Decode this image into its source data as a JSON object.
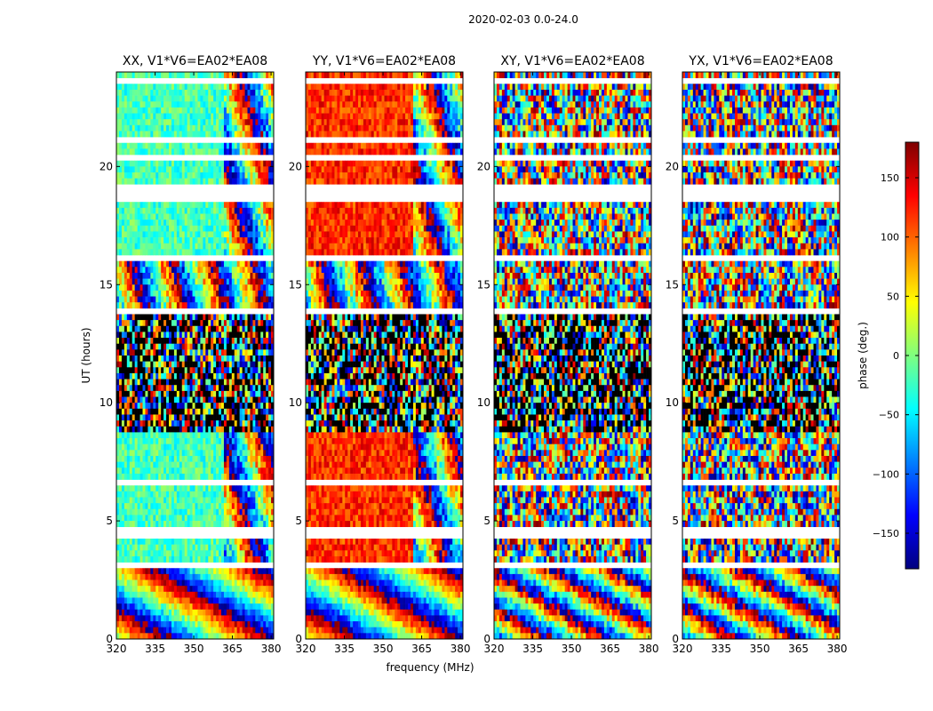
{
  "figure": {
    "suptitle": "2020-02-03 0.0-24.0",
    "xlabel": "frequency (MHz)",
    "ylabel": "UT (hours)"
  },
  "chart_data": {
    "type": "heatmap",
    "xlim": [
      320,
      381
    ],
    "ylim": [
      0,
      24
    ],
    "x_ticks": [
      320,
      335,
      350,
      365,
      380
    ],
    "y_ticks": [
      0,
      5,
      10,
      15,
      20
    ],
    "panels": [
      {
        "title": "XX, V1*V6=EA02*EA08",
        "pol": "XX",
        "base_phase": -20,
        "coherent": true
      },
      {
        "title": "YY, V1*V6=EA02*EA08",
        "pol": "YY",
        "base_phase": 120,
        "coherent": true
      },
      {
        "title": "XY, V1*V6=EA02*EA08",
        "pol": "XY",
        "base_phase": 0,
        "coherent": false
      },
      {
        "title": "YX, V1*V6=EA02*EA08",
        "pol": "YX",
        "base_phase": 0,
        "coherent": false
      }
    ],
    "flagged_ut_ranges_hours": [
      [
        3.1,
        3.3
      ],
      [
        4.2,
        4.7
      ],
      [
        6.6,
        6.7
      ],
      [
        8.7,
        8.8
      ],
      [
        13.7,
        13.9
      ],
      [
        16.1,
        16.2
      ],
      [
        18.6,
        19.3
      ],
      [
        20.3,
        20.5
      ],
      [
        21.1,
        21.2
      ],
      [
        21.4,
        21.6
      ],
      [
        23.5,
        23.7
      ]
    ],
    "colorbar": {
      "label": "phase (deg.)",
      "range": [
        -180,
        180
      ],
      "ticks": [
        -150,
        -100,
        -50,
        0,
        50,
        100,
        150
      ],
      "tick_labels": [
        "−150",
        "−100",
        "−50",
        "0",
        "50",
        "100",
        "150"
      ],
      "colormap": [
        "#00007f",
        "#0000ff",
        "#007fff",
        "#00ffff",
        "#7fff7f",
        "#ffff00",
        "#ff7f00",
        "#ff0000",
        "#7f0000"
      ]
    }
  }
}
